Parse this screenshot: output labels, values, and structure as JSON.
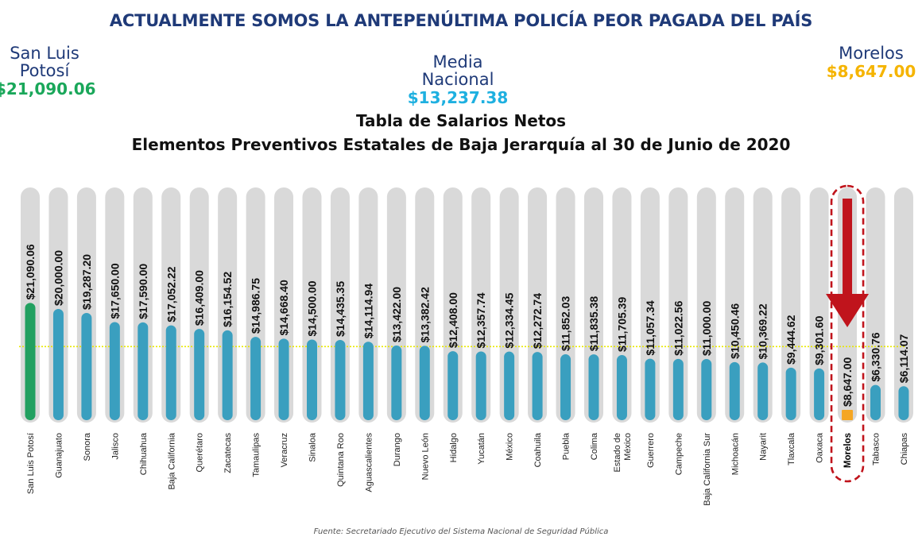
{
  "headline": "ACTUALMENTE SOMOS LA ANTEPENÚLTIMA POLICÍA PEOR PAGADA DEL PAÍS",
  "callouts": {
    "highest": {
      "label": "San Luis Potosí",
      "value": "$21,090.06",
      "color": "#1aa75a"
    },
    "average": {
      "label": "Media Nacional",
      "value": "$13,237.38",
      "color": "#1eb0e0"
    },
    "lowest_highlight": {
      "label": "Morelos",
      "value": "$8,647.00",
      "color": "#f5b400"
    }
  },
  "colors": {
    "bar": "#3a9fbf",
    "highest_bar": "#22a060",
    "highlight_bar": "#f5a623",
    "track": "#d9d9d9",
    "average_line": "#e8e800",
    "highlight_box": "#c0141c",
    "arrow": "#c0141c"
  },
  "chart_data": {
    "type": "bar",
    "title": "Tabla de Salarios Netos",
    "subtitle": "Elementos Preventivos Estatales de Baja Jerarquía al 30 de Junio de 2020",
    "categories": [
      "San Luis Potosí",
      "Guanajuato",
      "Sonora",
      "Jalisco",
      "Chihuahua",
      "Baja California",
      "Querétaro",
      "Zacatecas",
      "Tamaulipas",
      "Veracruz",
      "Sinaloa",
      "Quintana Roo",
      "Aguascalientes",
      "Durango",
      "Nuevo León",
      "Hidalgo",
      "Yucatán",
      "México",
      "Coahuila",
      "Puebla",
      "Colima",
      "Estado de México",
      "Guerrero",
      "Campeche",
      "Baja California Sur",
      "Michoacán",
      "Nayarit",
      "Tlaxcala",
      "Oaxaca",
      "Morelos",
      "Tabasco",
      "Chiapas"
    ],
    "values": [
      21090.06,
      20000.0,
      19287.2,
      17650.0,
      17590.0,
      17052.22,
      16409.0,
      16154.52,
      14986.75,
      14668.4,
      14500.0,
      14435.35,
      14114.94,
      13422.0,
      13382.42,
      12408.0,
      12357.74,
      12334.45,
      12272.74,
      11852.03,
      11835.38,
      11705.39,
      11057.34,
      11022.56,
      11000.0,
      10450.46,
      10369.22,
      9444.62,
      9301.6,
      8647.0,
      6330.76,
      6114.07
    ],
    "value_labels": [
      "$21,090.06",
      "$20,000.00",
      "$19,287.20",
      "$17,650.00",
      "$17,590.00",
      "$17,052.22",
      "$16,409.00",
      "$16,154.52",
      "$14,986.75",
      "$14,668.40",
      "$14,500.00",
      "$14,435.35",
      "$14,114.94",
      "$13,422.00",
      "$13,382.42",
      "$12,408.00",
      "$12,357.74",
      "$12,334.45",
      "$12,272.74",
      "$11,852.03",
      "$11,835.38",
      "$11,705.39",
      "$11,057.34",
      "$11,022.56",
      "$11,000.00",
      "$10,450.46",
      "$10,369.22",
      "$9,444.62",
      "$9,301.60",
      "$8,647.00",
      "$6,330.76",
      "$6,114.07"
    ],
    "average": 13237.38,
    "highlight": "Morelos",
    "xlabel": "",
    "ylabel": "",
    "grid": false,
    "legend": "none"
  },
  "source": "Fuente: Secretariado Ejecutivo del Sistema Nacional de Seguridad Pública"
}
